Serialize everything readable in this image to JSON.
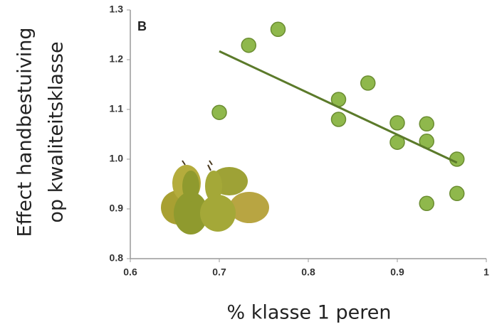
{
  "chart_data": {
    "type": "scatter",
    "panel_label": "B",
    "xlabel": "% klasse 1 peren",
    "ylabel": [
      "Effect handbestuiving",
      "op kwaliteitsklasse"
    ],
    "xlim": [
      0.6,
      1
    ],
    "ylim": [
      0.8,
      1.3
    ],
    "xticks": [
      0.6,
      0.7,
      0.8,
      0.9,
      1
    ],
    "yticks": [
      0.8,
      0.9,
      {
        "value": 1,
        "label": "1.0"
      },
      1.1,
      1.2,
      1.3
    ],
    "series": [
      {
        "color": "#8fb84c",
        "x": [
          0.7,
          0.733,
          0.766,
          0.834,
          0.834,
          0.867,
          0.9,
          0.9,
          0.933,
          0.933,
          0.933,
          0.967,
          0.967
        ],
        "values": [
          1.094,
          1.229,
          1.261,
          1.12,
          1.08,
          1.153,
          1.073,
          1.034,
          1.071,
          1.036,
          0.911,
          1.0,
          0.931
        ]
      }
    ],
    "trendline": {
      "color": "#5b7a2a",
      "x": [
        0.7,
        0.967
      ],
      "values": [
        1.217,
        0.993
      ]
    }
  }
}
